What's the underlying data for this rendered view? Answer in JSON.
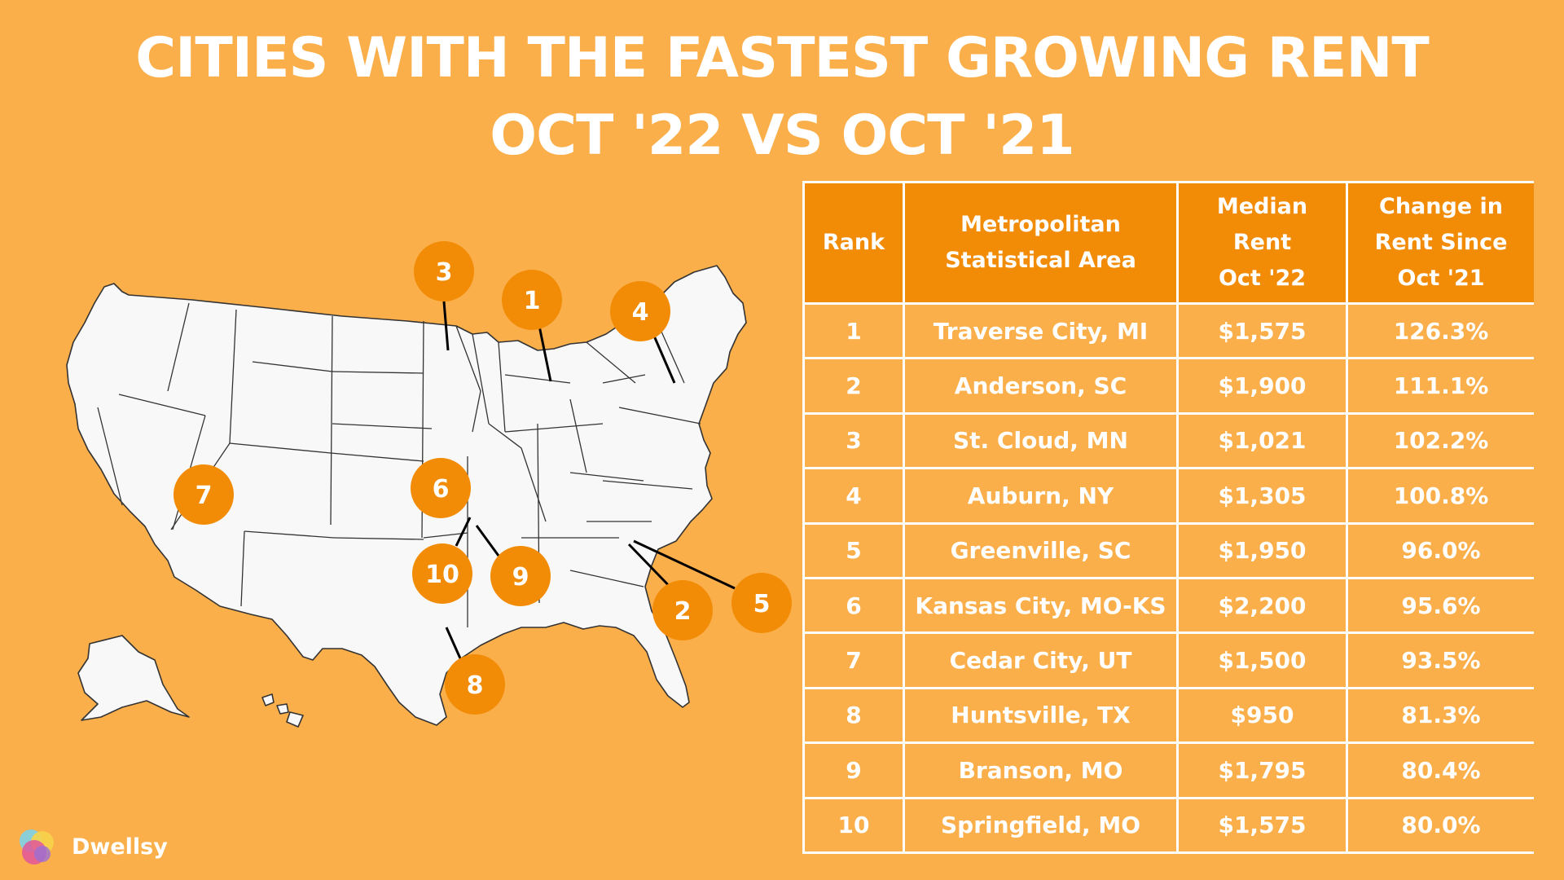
{
  "title": {
    "line1": "CITIES WITH THE FASTEST GROWING RENT",
    "line2": "OCT '22 VS OCT '21"
  },
  "colors": {
    "background": "#fbaf4b",
    "accent": "#f28c06",
    "map_fill": "#f8f8f8",
    "map_border": "#333333",
    "text": "#ffffff"
  },
  "table": {
    "headers": {
      "rank": "Rank",
      "area_line1": "Metropolitan",
      "area_line2": "Statistical Area",
      "rent_line1": "Median",
      "rent_line2": "Rent",
      "rent_line3": "Oct '22",
      "change_line1": "Change in",
      "change_line2": "Rent Since",
      "change_line3": "Oct '21"
    },
    "rows": [
      {
        "rank": "1",
        "area": "Traverse City, MI",
        "rent": "$1,575",
        "change": "126.3%"
      },
      {
        "rank": "2",
        "area": "Anderson, SC",
        "rent": "$1,900",
        "change": "111.1%"
      },
      {
        "rank": "3",
        "area": "St. Cloud, MN",
        "rent": "$1,021",
        "change": "102.2%"
      },
      {
        "rank": "4",
        "area": "Auburn, NY",
        "rent": "$1,305",
        "change": "100.8%"
      },
      {
        "rank": "5",
        "area": "Greenville, SC",
        "rent": "$1,950",
        "change": "96.0%"
      },
      {
        "rank": "6",
        "area": "Kansas City, MO-KS",
        "rent": "$2,200",
        "change": "95.6%"
      },
      {
        "rank": "7",
        "area": "Cedar City, UT",
        "rent": "$1,500",
        "change": "93.5%"
      },
      {
        "rank": "8",
        "area": "Huntsville, TX",
        "rent": "$950",
        "change": "81.3%"
      },
      {
        "rank": "9",
        "area": "Branson, MO",
        "rent": "$1,795",
        "change": "80.4%"
      },
      {
        "rank": "10",
        "area": "Springfield, MO",
        "rent": "$1,575",
        "change": "80.0%"
      }
    ]
  },
  "map": {
    "markers": [
      {
        "label": "1",
        "name": "traverse-city-mi"
      },
      {
        "label": "2",
        "name": "anderson-sc"
      },
      {
        "label": "3",
        "name": "st-cloud-mn"
      },
      {
        "label": "4",
        "name": "auburn-ny"
      },
      {
        "label": "5",
        "name": "greenville-sc"
      },
      {
        "label": "6",
        "name": "kansas-city-mo-ks"
      },
      {
        "label": "7",
        "name": "cedar-city-ut"
      },
      {
        "label": "8",
        "name": "huntsville-tx"
      },
      {
        "label": "9",
        "name": "branson-mo"
      },
      {
        "label": "10",
        "name": "springfield-mo"
      }
    ]
  },
  "brand": {
    "name": "Dwellsy"
  }
}
